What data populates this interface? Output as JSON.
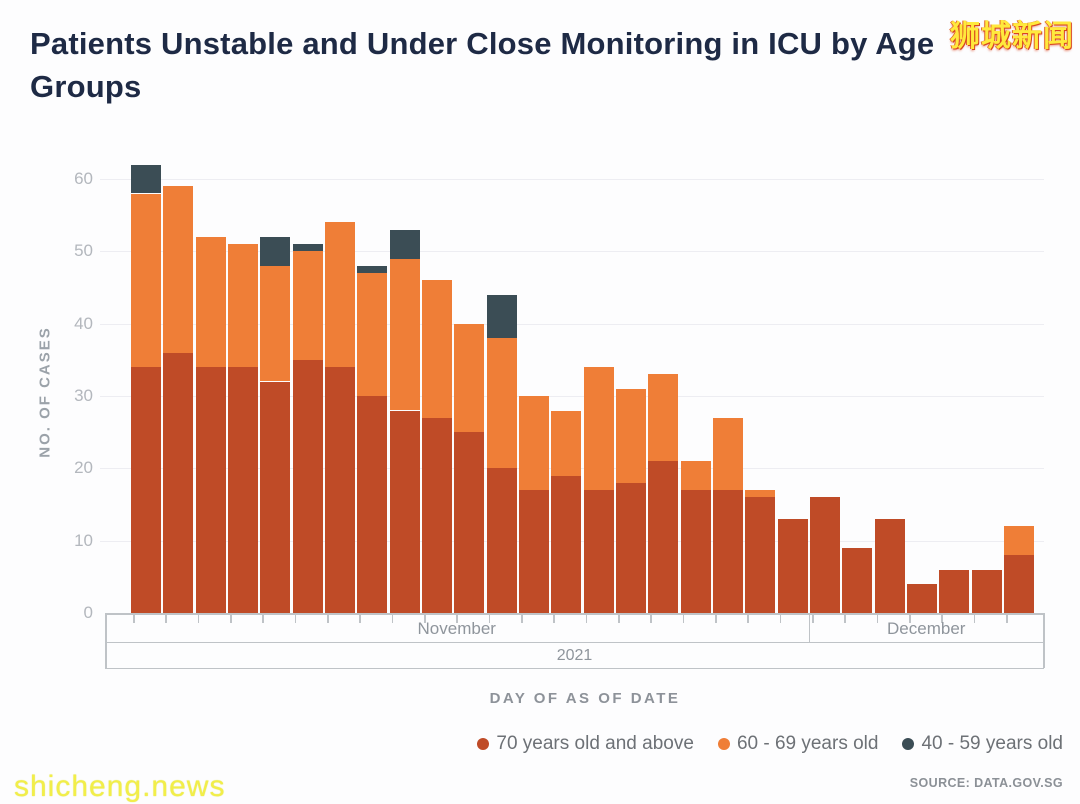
{
  "header": {
    "title": "Patients Unstable and Under Close Monitoring in ICU by Age Groups"
  },
  "watermarks": {
    "top_right": "狮城新闻",
    "bottom_left": "shicheng.news"
  },
  "source": "SOURCE: DATA.GOV.SG",
  "chart_data": {
    "type": "bar",
    "stacked": true,
    "title": "Patients Unstable and Under Close Monitoring in ICU by Age Groups",
    "xlabel": "DAY OF AS OF DATE",
    "ylabel": "NO. OF CASES",
    "ylim": [
      0,
      62
    ],
    "yticks": [
      0,
      10,
      20,
      30,
      40,
      50,
      60
    ],
    "grid": "horizontal",
    "legend_position": "bottom-right",
    "x_axis_groups": {
      "months": [
        {
          "label": "November",
          "bars": 21
        },
        {
          "label": "December",
          "bars": 7
        }
      ],
      "year_label": "2021"
    },
    "series": [
      {
        "name": "70 years old and above",
        "color": "#bf4b27",
        "values": [
          34,
          36,
          34,
          34,
          32,
          35,
          34,
          30,
          28,
          27,
          25,
          20,
          17,
          19,
          17,
          18,
          21,
          17,
          17,
          16,
          13,
          16,
          9,
          13,
          4,
          6,
          6,
          8
        ]
      },
      {
        "name": "60 - 69 years old",
        "color": "#ef7e37",
        "values": [
          24,
          23,
          18,
          17,
          16,
          15,
          20,
          17,
          21,
          19,
          15,
          18,
          13,
          9,
          17,
          13,
          12,
          4,
          10,
          1,
          0,
          0,
          0,
          0,
          0,
          0,
          0,
          4
        ]
      },
      {
        "name": "40 - 59 years old",
        "color": "#3b4d55",
        "values": [
          4,
          0,
          0,
          0,
          4,
          1,
          0,
          1,
          4,
          0,
          0,
          6,
          0,
          0,
          0,
          0,
          0,
          0,
          0,
          0,
          0,
          0,
          0,
          0,
          0,
          0,
          0,
          0
        ]
      }
    ],
    "bar_totals": [
      62,
      59,
      52,
      51,
      52,
      51,
      54,
      48,
      53,
      46,
      40,
      44,
      30,
      28,
      34,
      31,
      33,
      21,
      27,
      17,
      13,
      16,
      9,
      13,
      4,
      6,
      6,
      12
    ]
  }
}
